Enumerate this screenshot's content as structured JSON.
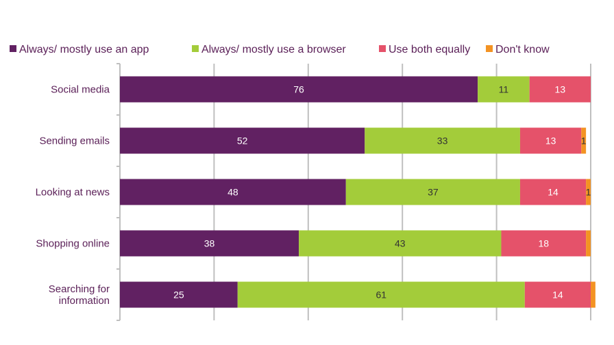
{
  "chart_data": {
    "type": "bar",
    "orientation": "horizontal",
    "stacked": true,
    "title": "",
    "xlabel": "",
    "ylabel": "",
    "xlim": [
      0,
      100
    ],
    "grid": true,
    "legend_position": "top",
    "categories": [
      "Social media",
      "Sending emails",
      "Looking at news",
      "Shopping online",
      "Searching for information"
    ],
    "category_lines": [
      [
        "Social media"
      ],
      [
        "Sending emails"
      ],
      [
        "Looking at news"
      ],
      [
        "Shopping online"
      ],
      [
        "Searching for",
        "information"
      ]
    ],
    "series": [
      {
        "name": "Always/ mostly use an app",
        "color": "#612162",
        "label_color": "#ffffff",
        "values": [
          76,
          52,
          48,
          38,
          25
        ],
        "labels": [
          "76",
          "52",
          "48",
          "38",
          "25"
        ]
      },
      {
        "name": "Always/ mostly use a browser",
        "color": "#a3cc3a",
        "label_color": "#333333",
        "values": [
          11,
          33,
          37,
          43,
          61
        ],
        "labels": [
          "11",
          "33",
          "37",
          "43",
          "61"
        ]
      },
      {
        "name": "Use both equally",
        "color": "#e5526a",
        "label_color": "#ffffff",
        "values": [
          13,
          13,
          14,
          18,
          14
        ],
        "labels": [
          "13",
          "13",
          "14",
          "18",
          "14"
        ]
      },
      {
        "name": "Don't know",
        "color": "#f39323",
        "label_color": "#333333",
        "values": [
          0,
          1,
          1,
          1,
          1
        ],
        "labels": [
          "",
          "1",
          "1",
          "",
          ""
        ]
      }
    ]
  }
}
